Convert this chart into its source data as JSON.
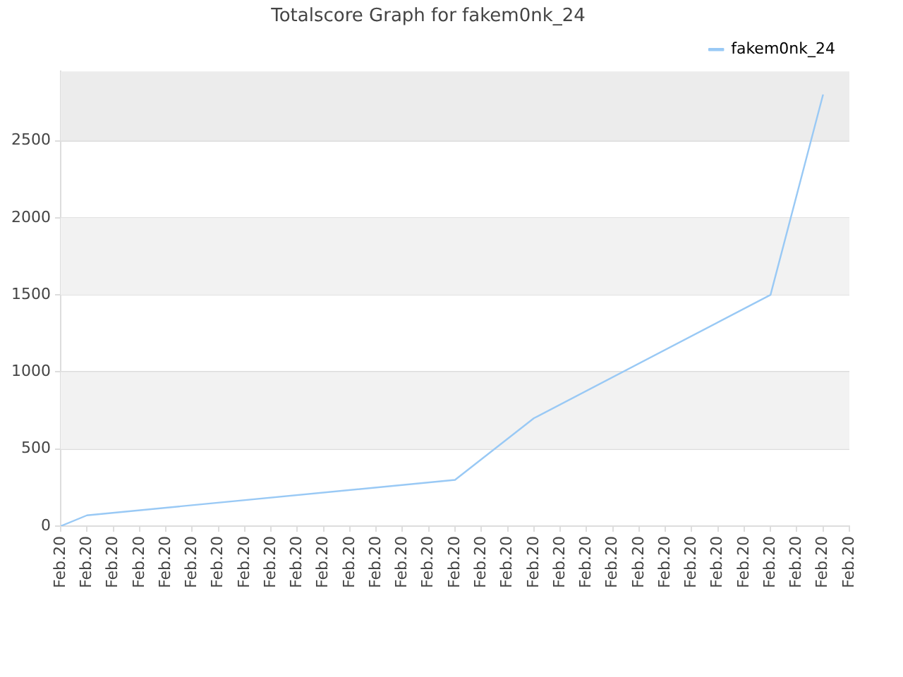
{
  "chart_data": {
    "type": "line",
    "title": "Totalscore Graph for fakem0nk_24",
    "categories": [
      "Feb.20",
      "Feb.20",
      "Feb.20",
      "Feb.20",
      "Feb.20",
      "Feb.20",
      "Feb.20",
      "Feb.20",
      "Feb.20",
      "Feb.20",
      "Feb.20",
      "Feb.20",
      "Feb.20",
      "Feb.20",
      "Feb.20",
      "Feb.20",
      "Feb.20",
      "Feb.20",
      "Feb.20",
      "Feb.20",
      "Feb.20",
      "Feb.20",
      "Feb.20",
      "Feb.20",
      "Feb.20",
      "Feb.20",
      "Feb.20",
      "Feb.20",
      "Feb.20",
      "Feb.20",
      "Feb.20"
    ],
    "series": [
      {
        "name": "fakem0nk_24",
        "color": "#99c9f5",
        "values": [
          0,
          70,
          null,
          null,
          null,
          null,
          null,
          null,
          null,
          null,
          null,
          null,
          null,
          null,
          null,
          300,
          null,
          null,
          700,
          null,
          null,
          null,
          null,
          null,
          null,
          null,
          null,
          1500,
          null,
          2800,
          null
        ]
      }
    ],
    "ylim": [
      0,
      2950
    ],
    "yticks": [
      0,
      500,
      1000,
      1500,
      2000,
      2500
    ],
    "bands": [
      {
        "axis": "y",
        "from": 500,
        "to": 1000,
        "color": "#f2f2f2"
      },
      {
        "axis": "y",
        "from": 1500,
        "to": 2000,
        "color": "#f2f2f2"
      },
      {
        "axis": "y",
        "from": 2500,
        "to": 2950,
        "color": "#ececec"
      }
    ],
    "grid": "y",
    "legend": "top right",
    "marker": "none"
  }
}
